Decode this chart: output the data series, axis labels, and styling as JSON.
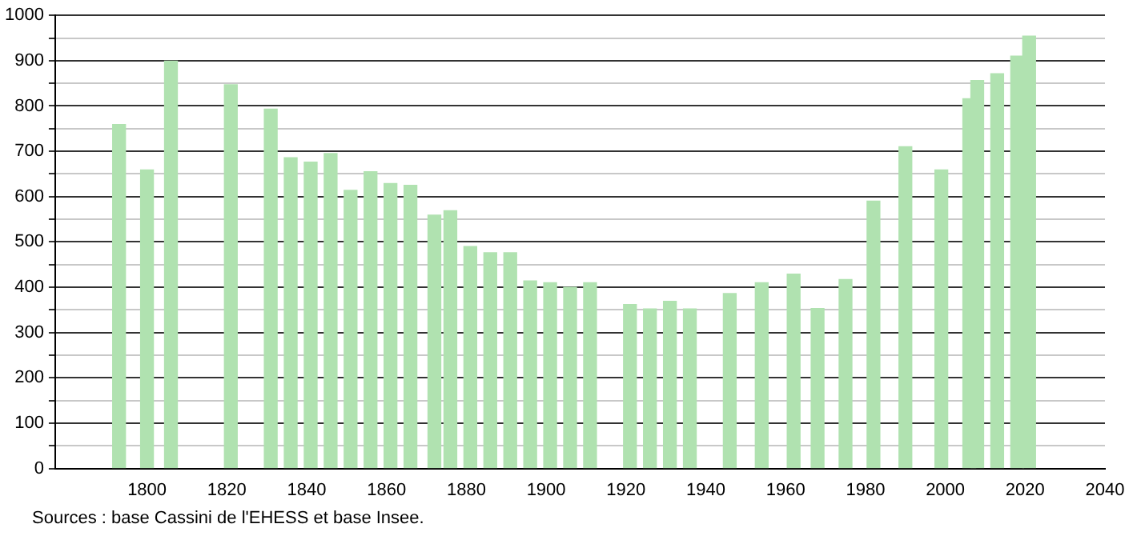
{
  "chart_data": {
    "type": "bar",
    "x": [
      1793,
      1800,
      1806,
      1821,
      1831,
      1836,
      1841,
      1846,
      1851,
      1856,
      1861,
      1866,
      1872,
      1876,
      1881,
      1886,
      1891,
      1896,
      1901,
      1906,
      1911,
      1921,
      1926,
      1931,
      1936,
      1946,
      1954,
      1962,
      1968,
      1975,
      1982,
      1990,
      1999,
      2006,
      2008,
      2013,
      2018,
      2021
    ],
    "values": [
      759,
      659,
      899,
      847,
      793,
      686,
      676,
      695,
      614,
      655,
      629,
      625,
      559,
      569,
      490,
      476,
      476,
      414,
      410,
      400,
      410,
      362,
      352,
      369,
      352,
      386,
      410,
      429,
      353,
      417,
      590,
      710,
      659,
      816,
      856,
      871,
      910,
      954
    ],
    "color": "#b0e2b0",
    "xlim": [
      1777,
      2040
    ],
    "xticks": [
      1800,
      1820,
      1840,
      1860,
      1880,
      1900,
      1920,
      1940,
      1960,
      1980,
      2000,
      2020,
      2040
    ],
    "ylim": [
      0,
      1000
    ],
    "yticks": [
      0,
      {
        "value": 50,
        "label": null
      },
      100,
      {
        "value": 150,
        "label": null
      },
      200,
      {
        "value": 250,
        "label": null
      },
      300,
      {
        "value": 350,
        "label": null
      },
      400,
      {
        "value": 450,
        "label": null
      },
      500,
      {
        "value": 550,
        "label": null
      },
      600,
      {
        "value": 650,
        "label": null
      },
      700,
      {
        "value": 750,
        "label": null
      },
      800,
      {
        "value": 850,
        "label": null
      },
      900,
      {
        "value": 950,
        "label": null
      },
      1000
    ],
    "grid": "y",
    "legend": false,
    "annotations": [
      "Sources : base Cassini de l'EHESS et base Insee."
    ]
  }
}
